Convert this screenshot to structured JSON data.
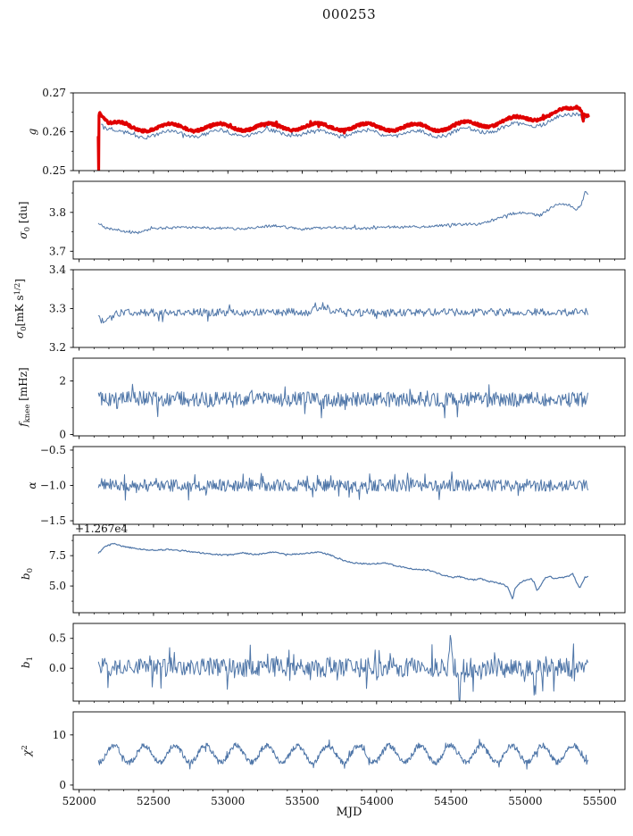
{
  "title": "000253",
  "xlabel": "MJD",
  "colors": {
    "line_blue": "#4f76a8",
    "line_red": "#e00000",
    "axis": "#000000",
    "background": "#ffffff"
  },
  "axes": {
    "xlim": [
      51960,
      55670
    ],
    "xticks": [
      {
        "v": 52000,
        "label": "52000"
      },
      {
        "v": 52500,
        "label": "52500"
      },
      {
        "v": 53000,
        "label": "53000"
      },
      {
        "v": 53500,
        "label": "53500"
      },
      {
        "v": 54000,
        "label": "54000"
      },
      {
        "v": 54500,
        "label": "54500"
      },
      {
        "v": 55000,
        "label": "55000"
      },
      {
        "v": 55500,
        "label": "55500"
      }
    ],
    "xminor": {
      "from": 52000,
      "to": 55600,
      "step": 100
    },
    "data_x_range": [
      52130,
      55420
    ]
  },
  "chart_data": [
    {
      "id": "g",
      "type": "line",
      "ylabel_plain": "g",
      "ylabel_parts": [
        {
          "t": "g",
          "i": 1
        }
      ],
      "ylim": [
        0.25,
        0.27
      ],
      "yticks": [
        {
          "v": 0.25,
          "label": "0.25"
        },
        {
          "v": 0.26,
          "label": "0.26"
        },
        {
          "v": 0.27,
          "label": "0.27"
        }
      ],
      "yminor": [
        0.255,
        0.265
      ],
      "series": [
        {
          "name": "gain-thin-blue",
          "color": "#4f76a8",
          "lw": 1,
          "seed": 12,
          "n": 430,
          "x_start": 52150,
          "x_end": 55420,
          "noise": 0.0005,
          "spike_p": 0.03,
          "wave": {
            "amp": 0.0008,
            "period": 330,
            "x0": 52200
          },
          "keypoints": [
            [
              52150,
              0.2628
            ],
            [
              52180,
              0.2612
            ],
            [
              52250,
              0.2596
            ],
            [
              52400,
              0.2593
            ],
            [
              52700,
              0.2596
            ],
            [
              53000,
              0.2596
            ],
            [
              53500,
              0.2597
            ],
            [
              54000,
              0.2596
            ],
            [
              54400,
              0.2595
            ],
            [
              54700,
              0.2604
            ],
            [
              54900,
              0.2612
            ],
            [
              55100,
              0.2624
            ],
            [
              55200,
              0.263
            ],
            [
              55300,
              0.2638
            ],
            [
              55350,
              0.265
            ],
            [
              55390,
              0.264
            ],
            [
              55420,
              0.2645
            ]
          ]
        },
        {
          "name": "gain-thick-red",
          "color": "#e00000",
          "lw": 3.2,
          "seed": 11,
          "n": 1150,
          "x_start": 52128,
          "x_end": 55424,
          "noise": 0.00035,
          "spike_p": 0.02,
          "wave": {
            "amp": 0.0009,
            "period": 330,
            "x0": 52200
          },
          "keypoints": [
            [
              52128,
              0.2595
            ],
            [
              52131,
              0.2502
            ],
            [
              52134,
              0.2662
            ],
            [
              52145,
              0.2652
            ],
            [
              52200,
              0.2622
            ],
            [
              52350,
              0.261
            ],
            [
              52600,
              0.2612
            ],
            [
              53000,
              0.2612
            ],
            [
              53500,
              0.2613
            ],
            [
              54000,
              0.2612
            ],
            [
              54400,
              0.2611
            ],
            [
              54700,
              0.262
            ],
            [
              54900,
              0.2628
            ],
            [
              55100,
              0.264
            ],
            [
              55200,
              0.2646
            ],
            [
              55300,
              0.2654
            ],
            [
              55350,
              0.2666
            ],
            [
              55380,
              0.266
            ],
            [
              55388,
              0.2634
            ],
            [
              55395,
              0.2652
            ],
            [
              55420,
              0.265
            ]
          ]
        }
      ]
    },
    {
      "id": "sigma0-du",
      "type": "line",
      "ylabel_plain": "sigma0 [du]",
      "ylabel_parts": [
        {
          "t": "σ",
          "i": 1
        },
        {
          "t": "0",
          "sub": 1
        },
        {
          "t": " [du]"
        }
      ],
      "ylim": [
        3.68,
        3.88
      ],
      "yticks": [
        {
          "v": 3.7,
          "label": "3.7"
        },
        {
          "v": 3.8,
          "label": "3.8"
        }
      ],
      "yminor": [
        3.75,
        3.85
      ],
      "series": [
        {
          "name": "sigma0-du",
          "color": "#4f76a8",
          "lw": 1,
          "seed": 21,
          "n": 520,
          "x_start": 52130,
          "x_end": 55420,
          "noise": 0.0035,
          "spike_p": 0.02,
          "keypoints": [
            [
              52130,
              3.772
            ],
            [
              52180,
              3.76
            ],
            [
              52300,
              3.752
            ],
            [
              52400,
              3.748
            ],
            [
              52500,
              3.758
            ],
            [
              52700,
              3.762
            ],
            [
              52900,
              3.76
            ],
            [
              53100,
              3.758
            ],
            [
              53300,
              3.766
            ],
            [
              53500,
              3.757
            ],
            [
              53700,
              3.762
            ],
            [
              53900,
              3.758
            ],
            [
              54100,
              3.763
            ],
            [
              54300,
              3.762
            ],
            [
              54500,
              3.768
            ],
            [
              54700,
              3.77
            ],
            [
              54800,
              3.782
            ],
            [
              54900,
              3.796
            ],
            [
              55000,
              3.8
            ],
            [
              55050,
              3.794
            ],
            [
              55100,
              3.792
            ],
            [
              55150,
              3.806
            ],
            [
              55200,
              3.818
            ],
            [
              55250,
              3.821
            ],
            [
              55300,
              3.818
            ],
            [
              55320,
              3.812
            ],
            [
              55350,
              3.808
            ],
            [
              55380,
              3.824
            ],
            [
              55400,
              3.852
            ],
            [
              55420,
              3.846
            ]
          ]
        }
      ]
    },
    {
      "id": "sigma0-mks",
      "type": "line",
      "ylabel_plain": "sigma0 [mK s^1/2]",
      "ylabel_parts": [
        {
          "t": "σ",
          "i": 1
        },
        {
          "t": "0",
          "sub": 1
        },
        {
          "t": "[mK s"
        },
        {
          "t": "1/2",
          "sup": 1
        },
        {
          "t": "]"
        }
      ],
      "ylim": [
        3.2,
        3.4
      ],
      "yticks": [
        {
          "v": 3.2,
          "label": "3.2"
        },
        {
          "v": 3.3,
          "label": "3.3"
        },
        {
          "v": 3.4,
          "label": "3.4"
        }
      ],
      "yminor": [
        3.25,
        3.35
      ],
      "series": [
        {
          "name": "sigma0-mks",
          "color": "#4f76a8",
          "lw": 1,
          "seed": 31,
          "n": 520,
          "x_start": 52130,
          "x_end": 55420,
          "noise": 0.01,
          "spike_p": 0.04,
          "keypoints": [
            [
              52130,
              3.278
            ],
            [
              52175,
              3.262
            ],
            [
              52260,
              3.29
            ],
            [
              53550,
              3.291
            ],
            [
              53640,
              3.307
            ],
            [
              53730,
              3.289
            ],
            [
              55420,
              3.291
            ]
          ]
        }
      ]
    },
    {
      "id": "fknee",
      "type": "line",
      "ylabel_plain": "f_knee [mHz]",
      "ylabel_parts": [
        {
          "t": "f",
          "i": 1
        },
        {
          "t": "knee",
          "sub": 1
        },
        {
          "t": " [mHz]"
        }
      ],
      "ylim": [
        -0.05,
        2.85
      ],
      "yticks": [
        {
          "v": 0,
          "label": "0"
        },
        {
          "v": 2,
          "label": "2"
        }
      ],
      "yminor": [
        1
      ],
      "series": [
        {
          "name": "fknee",
          "color": "#4f76a8",
          "lw": 1,
          "seed": 41,
          "n": 620,
          "x_start": 52130,
          "x_end": 55420,
          "noise": 0.28,
          "spike_p": 0.06,
          "keypoints": [
            [
              52130,
              1.35
            ],
            [
              53000,
              1.32
            ],
            [
              54000,
              1.3
            ],
            [
              55420,
              1.3
            ]
          ]
        }
      ]
    },
    {
      "id": "alpha",
      "type": "line",
      "ylabel_plain": "alpha",
      "ylabel_parts": [
        {
          "t": "α",
          "i": 1
        }
      ],
      "ylim": [
        -1.55,
        -0.45
      ],
      "yticks": [
        {
          "v": -0.5,
          "label": "−0.5"
        },
        {
          "v": -1.0,
          "label": "−1.0"
        },
        {
          "v": -1.5,
          "label": "−1.5"
        }
      ],
      "yminor": [
        -0.75,
        -1.25
      ],
      "series": [
        {
          "name": "alpha",
          "color": "#4f76a8",
          "lw": 1,
          "seed": 51,
          "n": 620,
          "x_start": 52130,
          "x_end": 55420,
          "noise": 0.085,
          "spike_p": 0.06,
          "keypoints": [
            [
              52130,
              -0.97
            ],
            [
              52300,
              -1.0
            ],
            [
              55420,
              -1.0
            ]
          ]
        }
      ]
    },
    {
      "id": "b0",
      "type": "line",
      "ylabel_plain": "b0",
      "offset_text": "+1.267e4",
      "ylabel_parts": [
        {
          "t": "b",
          "i": 1
        },
        {
          "t": "0",
          "sub": 1
        }
      ],
      "ylim": [
        2.8,
        9.2
      ],
      "yticks": [
        {
          "v": 5.0,
          "label": "5.0"
        },
        {
          "v": 7.5,
          "label": "7.5"
        }
      ],
      "yminor": [
        3.75,
        6.25,
        8.75
      ],
      "series": [
        {
          "name": "b0",
          "color": "#4f76a8",
          "lw": 1.2,
          "seed": 61,
          "n": 520,
          "x_start": 52130,
          "x_end": 55420,
          "noise": 0.055,
          "spike_p": 0.02,
          "keypoints": [
            [
              52130,
              7.7
            ],
            [
              52170,
              8.2
            ],
            [
              52230,
              8.5
            ],
            [
              52300,
              8.25
            ],
            [
              52400,
              8.05
            ],
            [
              52500,
              7.95
            ],
            [
              52600,
              8.0
            ],
            [
              52700,
              7.9
            ],
            [
              52800,
              7.75
            ],
            [
              52900,
              7.6
            ],
            [
              53000,
              7.55
            ],
            [
              53100,
              7.7
            ],
            [
              53200,
              7.6
            ],
            [
              53300,
              7.8
            ],
            [
              53400,
              7.6
            ],
            [
              53500,
              7.65
            ],
            [
              53600,
              7.8
            ],
            [
              53680,
              7.6
            ],
            [
              53750,
              7.2
            ],
            [
              53850,
              6.9
            ],
            [
              53950,
              6.8
            ],
            [
              54050,
              6.9
            ],
            [
              54150,
              6.6
            ],
            [
              54250,
              6.4
            ],
            [
              54350,
              6.3
            ],
            [
              54400,
              6.1
            ],
            [
              54450,
              5.9
            ],
            [
              54500,
              5.7
            ],
            [
              54550,
              5.8
            ],
            [
              54600,
              5.6
            ],
            [
              54650,
              5.5
            ],
            [
              54700,
              5.6
            ],
            [
              54750,
              5.4
            ],
            [
              54800,
              5.3
            ],
            [
              54850,
              5.15
            ],
            [
              54880,
              4.9
            ],
            [
              54900,
              4.4
            ],
            [
              54915,
              3.9
            ],
            [
              54930,
              4.8
            ],
            [
              54960,
              5.2
            ],
            [
              55000,
              5.5
            ],
            [
              55040,
              5.6
            ],
            [
              55060,
              5.3
            ],
            [
              55080,
              4.6
            ],
            [
              55100,
              5.0
            ],
            [
              55130,
              5.6
            ],
            [
              55160,
              5.8
            ],
            [
              55200,
              5.6
            ],
            [
              55250,
              5.7
            ],
            [
              55300,
              5.85
            ],
            [
              55320,
              6.0
            ],
            [
              55340,
              5.4
            ],
            [
              55360,
              5.0
            ],
            [
              55370,
              4.9
            ],
            [
              55380,
              5.2
            ],
            [
              55400,
              5.7
            ],
            [
              55420,
              5.75
            ]
          ]
        }
      ]
    },
    {
      "id": "b1",
      "type": "line",
      "ylabel_plain": "b1",
      "ylabel_parts": [
        {
          "t": "b",
          "i": 1
        },
        {
          "t": "1",
          "sub": 1
        }
      ],
      "ylim": [
        -0.55,
        0.75
      ],
      "yticks": [
        {
          "v": 0.0,
          "label": "0.0"
        },
        {
          "v": 0.5,
          "label": "0.5"
        }
      ],
      "yminor": [
        -0.25,
        0.25
      ],
      "series": [
        {
          "name": "b1",
          "color": "#4f76a8",
          "lw": 1,
          "seed": 71,
          "n": 620,
          "x_start": 52130,
          "x_end": 55420,
          "noise": 0.16,
          "spike_p": 0.07,
          "keypoints": [
            [
              52130,
              0.02
            ],
            [
              54480,
              0.01
            ],
            [
              54497,
              0.62
            ],
            [
              54512,
              0.0
            ],
            [
              54545,
              0.01
            ],
            [
              54558,
              -0.52
            ],
            [
              54572,
              0.01
            ],
            [
              55050,
              0.0
            ],
            [
              55062,
              -0.45
            ],
            [
              55075,
              0.01
            ],
            [
              55420,
              0.02
            ]
          ]
        }
      ]
    },
    {
      "id": "chi2",
      "type": "line",
      "ylabel_plain": "chi^2",
      "ylabel_parts": [
        {
          "t": "χ",
          "i": 1
        },
        {
          "t": "2",
          "sup": 1
        }
      ],
      "ylim": [
        -0.9,
        14.6
      ],
      "yticks": [
        {
          "v": 0,
          "label": "0"
        },
        {
          "v": 10,
          "label": "10"
        }
      ],
      "yminor": [
        5
      ],
      "series": [
        {
          "name": "chi2",
          "color": "#4f76a8",
          "lw": 1,
          "seed": 81,
          "n": 900,
          "x_start": 52130,
          "x_end": 55420,
          "noise": 0.55,
          "spike_p": 0.05,
          "wave": {
            "amp": 1.7,
            "period": 206,
            "x0": 52180
          },
          "keypoints": [
            [
              52130,
              6.2
            ],
            [
              55420,
              6.2
            ]
          ]
        }
      ]
    }
  ]
}
